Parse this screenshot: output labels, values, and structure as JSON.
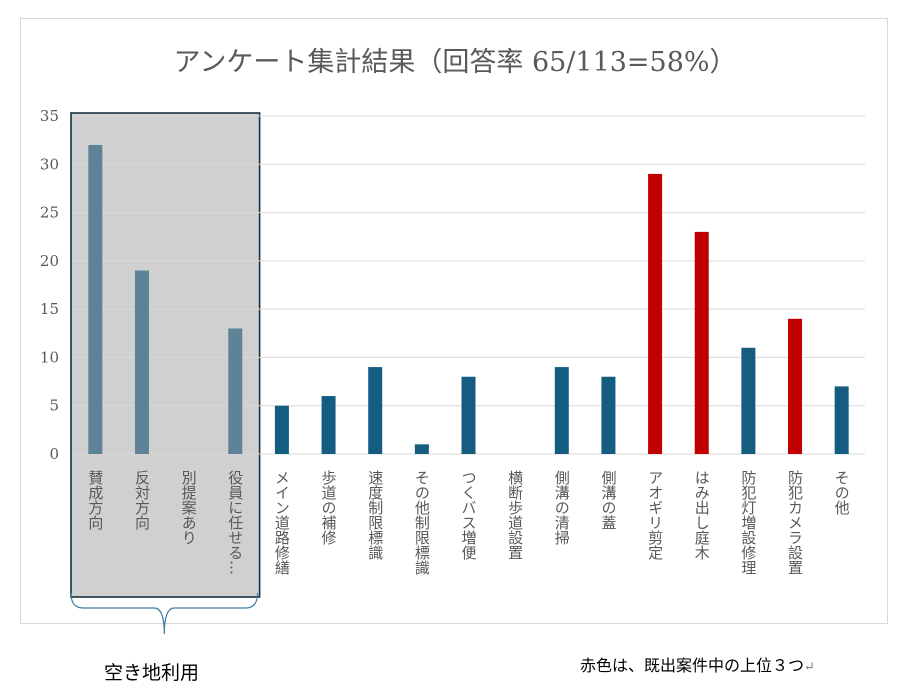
{
  "chart_data": {
    "type": "bar",
    "title": "アンケート集計結果（回答率 65/113=58%）",
    "categories": [
      "賛成方向",
      "反対方向",
      "別提案あり",
      "役員に任せる…",
      "メイン道路修繕",
      "歩道の補修",
      "速度制限標識",
      "その他制限標識",
      "つくバス増便",
      "横断歩道設置",
      "側溝の清掃",
      "側溝の蓋",
      "アオギリ剪定",
      "はみ出し庭木",
      "防犯灯増設修理",
      "防犯カメラ設置",
      "その他"
    ],
    "values": [
      32,
      19,
      0,
      13,
      5,
      6,
      9,
      1,
      8,
      0,
      9,
      8,
      29,
      23,
      11,
      14,
      7
    ],
    "highlight": [
      "group",
      "group",
      "group",
      "group",
      "normal",
      "normal",
      "normal",
      "normal",
      "normal",
      "normal",
      "normal",
      "normal",
      "top",
      "top",
      "normal",
      "top",
      "normal"
    ],
    "ylim": [
      0,
      35
    ],
    "yticks": [
      "0",
      "5",
      "10",
      "15",
      "20",
      "25",
      "30",
      "35"
    ],
    "ytick_values": [
      0,
      5,
      10,
      15,
      20,
      25,
      30,
      35
    ],
    "grid": true,
    "xlabel": "",
    "ylabel": ""
  },
  "colors": {
    "group_bar": "#5f8396",
    "normal_bar": "#145d80",
    "top_bar": "#c00000",
    "group_box_fill": "#d0d0d0",
    "group_box_border": "#16303f",
    "brace": "#3d7ea6"
  },
  "annotations": {
    "group_label": "空き地利用",
    "footnote": "赤色は、既出案件中の上位３つ",
    "footnote_mark": "↵"
  }
}
